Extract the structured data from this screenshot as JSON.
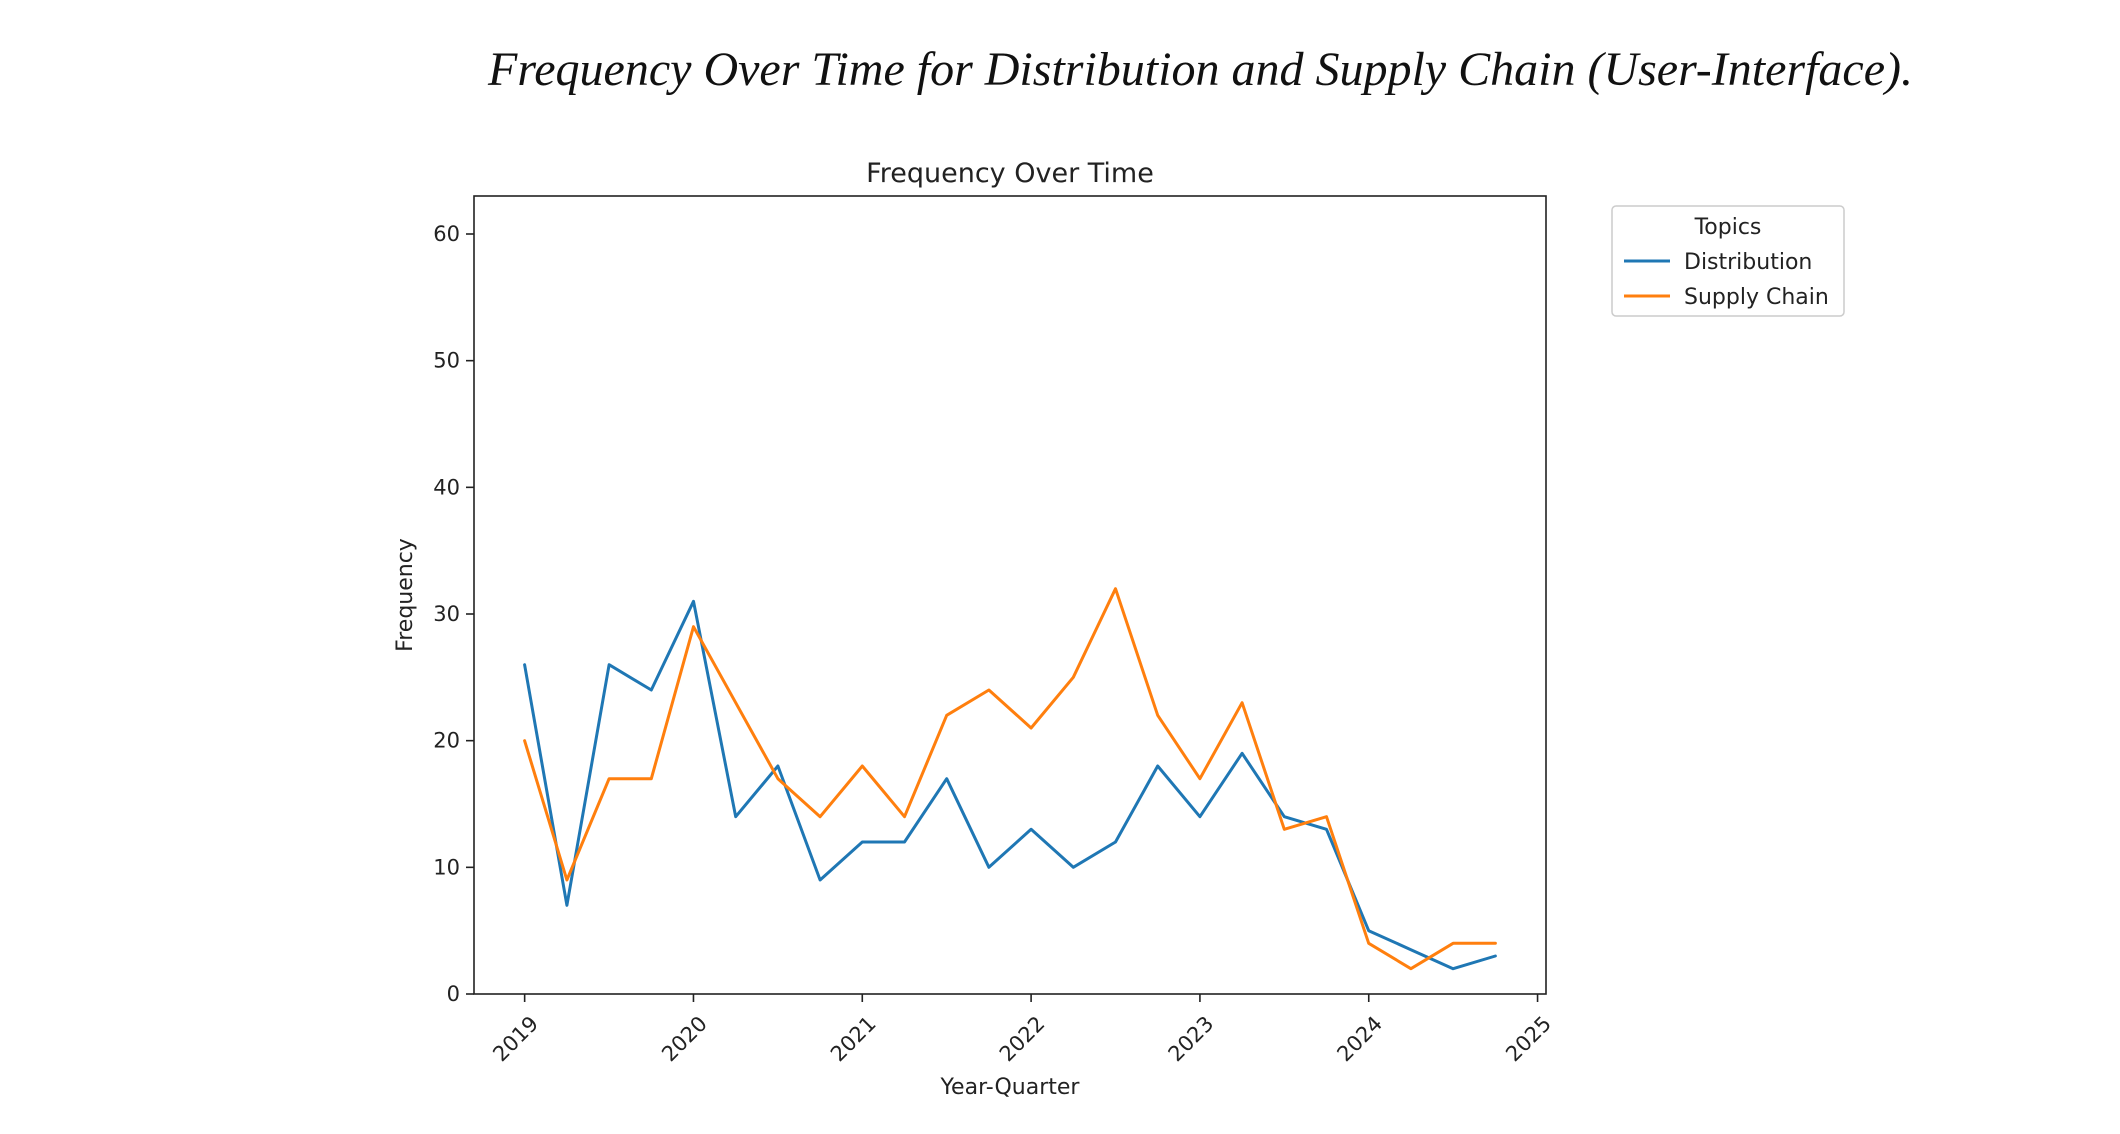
{
  "caption": "Frequency Over Time for Distribution and Supply Chain (User-Interface).",
  "chart_data": {
    "type": "line",
    "title": "Frequency Over Time",
    "xlabel": "Year-Quarter",
    "ylabel": "Frequency",
    "xlim": [
      2018.7,
      2025.05
    ],
    "ylim": [
      0,
      63
    ],
    "x": [
      2019.0,
      2019.25,
      2019.5,
      2019.75,
      2020.0,
      2020.25,
      2020.5,
      2020.75,
      2021.0,
      2021.25,
      2021.5,
      2021.75,
      2022.0,
      2022.25,
      2022.5,
      2022.75,
      2023.0,
      2023.25,
      2023.5,
      2023.75,
      2024.0,
      2024.25,
      2024.5,
      2024.75
    ],
    "xticks": [
      2019,
      2020,
      2021,
      2022,
      2023,
      2024,
      2025
    ],
    "xtick_labels": [
      "2019",
      "2020",
      "2021",
      "2022",
      "2023",
      "2024",
      "2025"
    ],
    "yticks": [
      0,
      10,
      20,
      30,
      40,
      50,
      60
    ],
    "ytick_labels": [
      "0",
      "10",
      "20",
      "30",
      "40",
      "50",
      "60"
    ],
    "grid": false,
    "legend": {
      "title": "Topics",
      "placement": "outside-top-right"
    },
    "series": [
      {
        "name": "Distribution",
        "color": "#1f77b4",
        "values": [
          26,
          7,
          26,
          24,
          31,
          14,
          18,
          9,
          12,
          12,
          17,
          10,
          13,
          10,
          12,
          18,
          14,
          19,
          14,
          13,
          5,
          3.5,
          2,
          3
        ]
      },
      {
        "name": "Supply Chain",
        "color": "#ff7f0e",
        "values": [
          20,
          9,
          17,
          17,
          29,
          23,
          17,
          14,
          18,
          14,
          22,
          24,
          21,
          25,
          32,
          22,
          17,
          23,
          13,
          14,
          4,
          2,
          4,
          4
        ]
      }
    ]
  }
}
